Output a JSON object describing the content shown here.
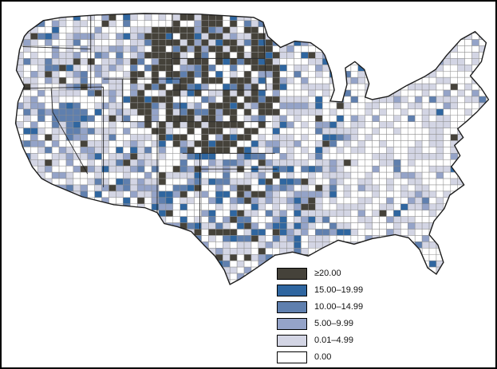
{
  "map": {
    "name": "us-county-choropleth",
    "type": "choropleth",
    "region": "United States, by county",
    "outline_color": "#1c1c1c",
    "county_border_color": "#8e8e8e",
    "legend": [
      {
        "label": "≥20.00",
        "color": "#45423a"
      },
      {
        "label": "15.00–19.99",
        "color": "#2f66a0"
      },
      {
        "label": "10.00–14.99",
        "color": "#5f7fae"
      },
      {
        "label": "5.00–9.99",
        "color": "#94a3c8"
      },
      {
        "label": "0.01–4.99",
        "color": "#d3d5e4"
      },
      {
        "label": "0.00",
        "color": "#ffffff"
      }
    ]
  }
}
